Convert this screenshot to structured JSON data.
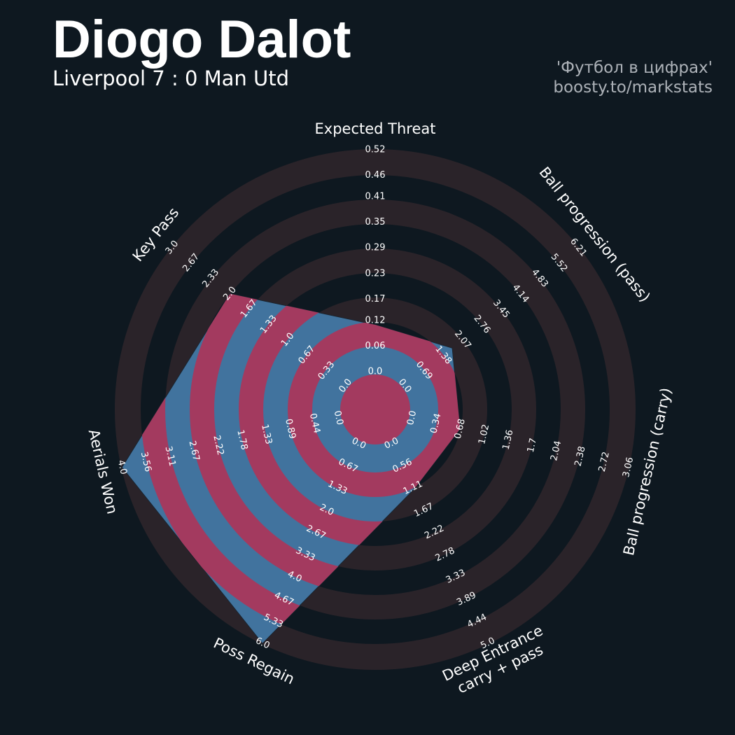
{
  "credits": [
    "'Футбол в цифрах'",
    "boosty.to/markstats"
  ],
  "chart_data": {
    "type": "radar",
    "title": "Diogo Dalot",
    "subtitle": "Liverpool 7 : 0 Man Utd",
    "params": [
      [
        "Expected Threat"
      ],
      [
        "Ball progression (pass)"
      ],
      [
        "Ball progression (carry)"
      ],
      [
        "Deep Entrance",
        "carry + pass"
      ],
      [
        "Poss Regain"
      ],
      [
        "Aerials Won"
      ],
      [
        "Key Pass"
      ]
    ],
    "axes": [
      {
        "lim": [
          0,
          0.52
        ],
        "ticks": [
          {
            "value": 0,
            "label": "0.0"
          },
          0.06,
          0.12,
          0.17,
          0.23,
          0.29,
          0.35,
          0.41,
          0.46,
          0.52
        ]
      },
      {
        "lim": [
          0,
          6.21
        ],
        "ticks": [
          {
            "value": 0,
            "label": "0.0"
          },
          0.69,
          1.38,
          2.07,
          2.76,
          3.45,
          4.14,
          4.83,
          5.52,
          6.21
        ]
      },
      {
        "lim": [
          0,
          3.06
        ],
        "ticks": [
          {
            "value": 0,
            "label": "0.0"
          },
          0.34,
          0.68,
          1.02,
          1.36,
          1.7,
          2.04,
          2.38,
          2.72,
          3.06
        ]
      },
      {
        "lim": [
          0,
          5
        ],
        "ticks": [
          {
            "value": 0,
            "label": "0.0"
          },
          0.56,
          1.11,
          1.67,
          2.22,
          2.78,
          3.33,
          3.89,
          4.44,
          {
            "value": 5,
            "label": "5.0"
          }
        ]
      },
      {
        "lim": [
          0,
          6
        ],
        "ticks": [
          {
            "value": 0,
            "label": "0.0"
          },
          0.67,
          1.33,
          {
            "value": 2,
            "label": "2.0"
          },
          2.67,
          3.33,
          {
            "value": 4,
            "label": "4.0"
          },
          4.67,
          5.33,
          {
            "value": 6,
            "label": "6.0"
          }
        ]
      },
      {
        "lim": [
          0,
          4
        ],
        "ticks": [
          {
            "value": 0,
            "label": "0.0"
          },
          0.44,
          0.89,
          1.33,
          1.78,
          2.22,
          2.67,
          3.11,
          3.56,
          {
            "value": 4,
            "label": "4.0"
          }
        ]
      },
      {
        "lim": [
          0,
          3
        ],
        "ticks": [
          {
            "value": 0,
            "label": "0.0"
          },
          0.33,
          0.67,
          {
            "value": 1,
            "label": "1.0"
          },
          1.33,
          1.67,
          {
            "value": 2,
            "label": "2.0"
          },
          2.33,
          2.67,
          {
            "value": 3,
            "label": "3.0"
          }
        ]
      }
    ],
    "values": [
      0.11,
      1.7,
      0.68,
      1.15,
      6.0,
      4.0,
      2.0
    ],
    "color": "#41739e",
    "ring_color": "#a33a5f",
    "background_ring_color": "#2a2329"
  }
}
